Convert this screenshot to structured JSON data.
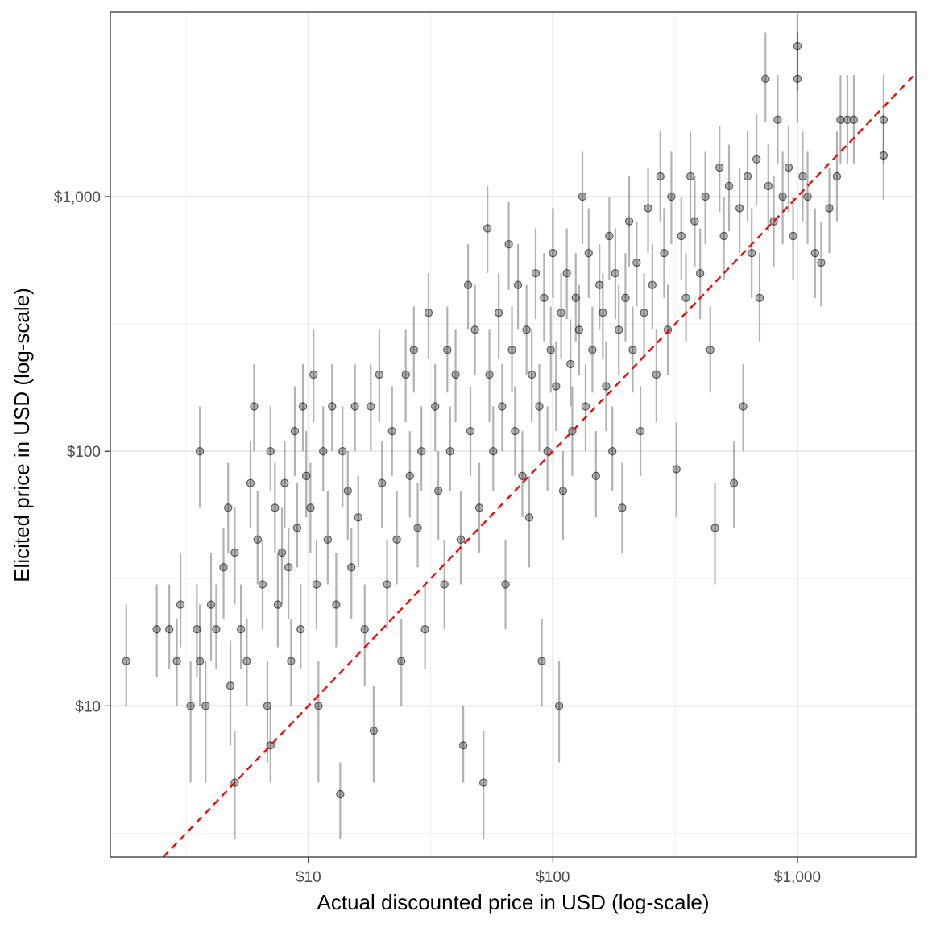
{
  "chart_data": {
    "type": "scatter",
    "title": "",
    "xlabel": "Actual discounted price in USD (log-scale)",
    "ylabel": "Elicited price in USD (log-scale)",
    "x_scale": "log10",
    "y_scale": "log10",
    "xlim": [
      1.55,
      3050
    ],
    "ylim": [
      2.55,
      5300
    ],
    "x_ticks": [
      {
        "value": 10,
        "label": "$10"
      },
      {
        "value": 100,
        "label": "$100"
      },
      {
        "value": 1000,
        "label": "$1,000"
      }
    ],
    "y_ticks": [
      {
        "value": 10,
        "label": "$10"
      },
      {
        "value": 100,
        "label": "$100"
      },
      {
        "value": 1000,
        "label": "$1,000"
      }
    ],
    "grid": true,
    "reference_line": {
      "type": "identity",
      "style": "dashed",
      "color": "#ff0000"
    },
    "point_color": "#000000",
    "point_alpha": 0.3,
    "points": [
      [
        1.8,
        15,
        10,
        25
      ],
      [
        2.4,
        20,
        13,
        30
      ],
      [
        2.7,
        20,
        14,
        30
      ],
      [
        2.9,
        15,
        10,
        22
      ],
      [
        3.0,
        25,
        17,
        40
      ],
      [
        3.3,
        10,
        5,
        15
      ],
      [
        3.5,
        20,
        13,
        30
      ],
      [
        3.6,
        100,
        60,
        150
      ],
      [
        3.6,
        15,
        10,
        25
      ],
      [
        3.8,
        10,
        5,
        15
      ],
      [
        4.0,
        25,
        15,
        40
      ],
      [
        4.2,
        20,
        14,
        30
      ],
      [
        4.5,
        35,
        22,
        50
      ],
      [
        4.7,
        60,
        40,
        90
      ],
      [
        4.8,
        12,
        7,
        18
      ],
      [
        5.0,
        5,
        3,
        8
      ],
      [
        5.0,
        40,
        25,
        60
      ],
      [
        5.3,
        20,
        14,
        30
      ],
      [
        5.6,
        15,
        10,
        22
      ],
      [
        5.8,
        75,
        50,
        110
      ],
      [
        6.0,
        150,
        100,
        220
      ],
      [
        6.2,
        45,
        30,
        70
      ],
      [
        6.5,
        30,
        20,
        45
      ],
      [
        6.8,
        10,
        6,
        15
      ],
      [
        7.0,
        7,
        5,
        10
      ],
      [
        7.0,
        100,
        70,
        150
      ],
      [
        7.3,
        60,
        40,
        90
      ],
      [
        7.5,
        25,
        17,
        40
      ],
      [
        7.8,
        40,
        25,
        60
      ],
      [
        8.0,
        75,
        50,
        110
      ],
      [
        8.3,
        35,
        22,
        50
      ],
      [
        8.5,
        15,
        10,
        22
      ],
      [
        8.8,
        120,
        80,
        180
      ],
      [
        9.0,
        50,
        35,
        75
      ],
      [
        9.3,
        20,
        14,
        30
      ],
      [
        9.5,
        150,
        100,
        220
      ],
      [
        9.8,
        80,
        55,
        120
      ],
      [
        10.2,
        60,
        40,
        90
      ],
      [
        10.5,
        200,
        130,
        300
      ],
      [
        10.8,
        30,
        20,
        45
      ],
      [
        11.0,
        10,
        5,
        15
      ],
      [
        11.5,
        100,
        70,
        150
      ],
      [
        12.0,
        45,
        30,
        70
      ],
      [
        12.5,
        150,
        100,
        220
      ],
      [
        13.0,
        25,
        17,
        40
      ],
      [
        13.5,
        4.5,
        3,
        6
      ],
      [
        13.8,
        100,
        60,
        150
      ],
      [
        14.5,
        70,
        45,
        100
      ],
      [
        15.0,
        35,
        22,
        50
      ],
      [
        15.5,
        150,
        100,
        220
      ],
      [
        16.0,
        55,
        35,
        80
      ],
      [
        17.0,
        20,
        12,
        30
      ],
      [
        18.0,
        150,
        100,
        220
      ],
      [
        18.5,
        8,
        5,
        12
      ],
      [
        19.5,
        200,
        130,
        300
      ],
      [
        20.0,
        75,
        50,
        110
      ],
      [
        21.0,
        30,
        20,
        45
      ],
      [
        22.0,
        120,
        80,
        180
      ],
      [
        23.0,
        45,
        30,
        70
      ],
      [
        24.0,
        15,
        10,
        22
      ],
      [
        25.0,
        200,
        130,
        300
      ],
      [
        26.0,
        80,
        55,
        120
      ],
      [
        27.0,
        250,
        170,
        370
      ],
      [
        28.0,
        50,
        35,
        75
      ],
      [
        29.0,
        100,
        70,
        150
      ],
      [
        30.0,
        20,
        14,
        30
      ],
      [
        31.0,
        350,
        230,
        500
      ],
      [
        33.0,
        150,
        100,
        220
      ],
      [
        34.0,
        70,
        45,
        100
      ],
      [
        36.0,
        30,
        20,
        45
      ],
      [
        37.0,
        250,
        170,
        370
      ],
      [
        38.0,
        100,
        70,
        150
      ],
      [
        40.0,
        200,
        130,
        300
      ],
      [
        42.0,
        45,
        30,
        70
      ],
      [
        43.0,
        7,
        5,
        10
      ],
      [
        45.0,
        450,
        300,
        650
      ],
      [
        46.0,
        120,
        80,
        180
      ],
      [
        48.0,
        300,
        200,
        450
      ],
      [
        50.0,
        60,
        40,
        90
      ],
      [
        52.0,
        5,
        3,
        8
      ],
      [
        54.0,
        750,
        500,
        1100
      ],
      [
        55.0,
        200,
        130,
        300
      ],
      [
        57.0,
        100,
        70,
        150
      ],
      [
        60.0,
        350,
        230,
        500
      ],
      [
        62.0,
        150,
        100,
        220
      ],
      [
        64.0,
        30,
        20,
        45
      ],
      [
        66.0,
        650,
        430,
        950
      ],
      [
        68.0,
        250,
        170,
        370
      ],
      [
        70.0,
        120,
        80,
        180
      ],
      [
        72.0,
        450,
        300,
        650
      ],
      [
        75.0,
        80,
        55,
        120
      ],
      [
        78.0,
        300,
        200,
        450
      ],
      [
        80.0,
        55,
        35,
        80
      ],
      [
        82.0,
        200,
        130,
        300
      ],
      [
        85.0,
        500,
        330,
        750
      ],
      [
        88.0,
        150,
        100,
        220
      ],
      [
        90.0,
        15,
        10,
        22
      ],
      [
        92.0,
        400,
        270,
        600
      ],
      [
        95.0,
        100,
        70,
        150
      ],
      [
        98.0,
        250,
        170,
        370
      ],
      [
        100.0,
        600,
        400,
        900
      ],
      [
        103.0,
        180,
        120,
        270
      ],
      [
        106.0,
        10,
        6,
        15
      ],
      [
        108.0,
        350,
        230,
        500
      ],
      [
        110.0,
        70,
        45,
        100
      ],
      [
        114.0,
        500,
        330,
        750
      ],
      [
        118.0,
        220,
        150,
        330
      ],
      [
        120.0,
        120,
        80,
        180
      ],
      [
        124.0,
        400,
        270,
        600
      ],
      [
        128.0,
        300,
        200,
        450
      ],
      [
        132.0,
        1000,
        650,
        1500
      ],
      [
        136.0,
        150,
        100,
        220
      ],
      [
        140.0,
        600,
        400,
        900
      ],
      [
        145.0,
        250,
        170,
        370
      ],
      [
        150.0,
        80,
        55,
        120
      ],
      [
        155.0,
        450,
        300,
        650
      ],
      [
        160.0,
        350,
        230,
        500
      ],
      [
        165.0,
        180,
        120,
        270
      ],
      [
        170.0,
        700,
        470,
        1000
      ],
      [
        175.0,
        100,
        70,
        150
      ],
      [
        180.0,
        500,
        330,
        750
      ],
      [
        186.0,
        300,
        200,
        450
      ],
      [
        192.0,
        60,
        40,
        90
      ],
      [
        198.0,
        400,
        270,
        600
      ],
      [
        205.0,
        800,
        530,
        1200
      ],
      [
        212.0,
        250,
        170,
        370
      ],
      [
        220.0,
        550,
        370,
        800
      ],
      [
        228.0,
        120,
        80,
        180
      ],
      [
        236.0,
        350,
        230,
        500
      ],
      [
        245.0,
        900,
        600,
        1300
      ],
      [
        255.0,
        450,
        300,
        650
      ],
      [
        265.0,
        200,
        130,
        300
      ],
      [
        275.0,
        1200,
        800,
        1800
      ],
      [
        285.0,
        600,
        400,
        900
      ],
      [
        295.0,
        300,
        200,
        450
      ],
      [
        305.0,
        1000,
        650,
        1500
      ],
      [
        320.0,
        85,
        55,
        130
      ],
      [
        335.0,
        700,
        470,
        1000
      ],
      [
        350.0,
        400,
        270,
        600
      ],
      [
        365.0,
        1200,
        800,
        1800
      ],
      [
        380.0,
        800,
        530,
        1200
      ],
      [
        400.0,
        500,
        330,
        750
      ],
      [
        420.0,
        1000,
        650,
        1500
      ],
      [
        440.0,
        250,
        170,
        370
      ],
      [
        460.0,
        50,
        30,
        75
      ],
      [
        480.0,
        1300,
        870,
        1900
      ],
      [
        500.0,
        700,
        470,
        1000
      ],
      [
        525.0,
        1100,
        730,
        1600
      ],
      [
        550.0,
        75,
        50,
        110
      ],
      [
        580.0,
        900,
        600,
        1300
      ],
      [
        600.0,
        150,
        100,
        220
      ],
      [
        625.0,
        1200,
        800,
        1800
      ],
      [
        650.0,
        600,
        400,
        900
      ],
      [
        680.0,
        1400,
        930,
        2100
      ],
      [
        700.0,
        400,
        270,
        600
      ],
      [
        740.0,
        2900,
        1950,
        4400
      ],
      [
        760.0,
        1100,
        730,
        1600
      ],
      [
        800.0,
        800,
        530,
        1200
      ],
      [
        830.0,
        2000,
        1350,
        3000
      ],
      [
        870.0,
        1000,
        650,
        1500
      ],
      [
        920.0,
        1300,
        870,
        1900
      ],
      [
        960.0,
        700,
        470,
        1000
      ],
      [
        1000.0,
        3900,
        2600,
        5200
      ],
      [
        1000.0,
        2900,
        1950,
        4400
      ],
      [
        1050.0,
        1200,
        800,
        1800
      ],
      [
        1100.0,
        1000,
        650,
        1500
      ],
      [
        1180.0,
        600,
        400,
        900
      ],
      [
        1250.0,
        550,
        370,
        800
      ],
      [
        1350.0,
        900,
        600,
        1300
      ],
      [
        1450.0,
        1200,
        800,
        1800
      ],
      [
        1500.0,
        2000,
        1350,
        3000
      ],
      [
        1600.0,
        2000,
        1350,
        3000
      ],
      [
        1700.0,
        2000,
        1350,
        3000
      ],
      [
        2250.0,
        2000,
        1350,
        3000
      ],
      [
        2250.0,
        1450,
        970,
        2100
      ]
    ]
  }
}
